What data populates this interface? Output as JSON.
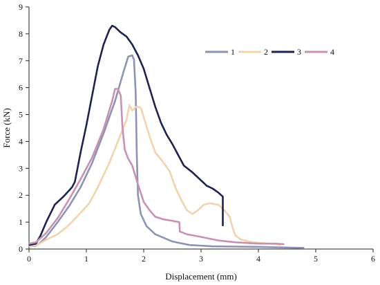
{
  "chart_data": {
    "type": "line",
    "title": "",
    "xlabel": "Displacement (mm)",
    "ylabel": "Force (kN)",
    "xlim": [
      0,
      6
    ],
    "ylim": [
      0,
      9
    ],
    "x_ticks": [
      0,
      1,
      2,
      3,
      4,
      5,
      6
    ],
    "y_ticks": [
      0,
      1,
      2,
      3,
      4,
      5,
      6,
      7,
      8,
      9
    ],
    "grid": false,
    "legend_position": "top-right",
    "series": [
      {
        "name": "1",
        "color": "#8e93b6",
        "points": [
          [
            0.0,
            0.1
          ],
          [
            0.12,
            0.12
          ],
          [
            0.18,
            0.2
          ],
          [
            0.3,
            0.45
          ],
          [
            0.5,
            1.0
          ],
          [
            0.7,
            1.6
          ],
          [
            0.9,
            2.3
          ],
          [
            1.1,
            3.2
          ],
          [
            1.3,
            4.3
          ],
          [
            1.5,
            5.5
          ],
          [
            1.65,
            6.6
          ],
          [
            1.73,
            7.15
          ],
          [
            1.8,
            7.2
          ],
          [
            1.83,
            7.05
          ],
          [
            1.86,
            5.8
          ],
          [
            1.88,
            3.5
          ],
          [
            1.9,
            2.0
          ],
          [
            1.95,
            1.3
          ],
          [
            2.05,
            0.85
          ],
          [
            2.2,
            0.55
          ],
          [
            2.5,
            0.28
          ],
          [
            2.8,
            0.15
          ],
          [
            3.2,
            0.1
          ],
          [
            4.0,
            0.08
          ],
          [
            4.4,
            0.06
          ],
          [
            4.8,
            0.04
          ]
        ]
      },
      {
        "name": "2",
        "color": "#f2d3ad",
        "points": [
          [
            0.0,
            0.1
          ],
          [
            0.15,
            0.15
          ],
          [
            0.3,
            0.35
          ],
          [
            0.5,
            0.55
          ],
          [
            0.7,
            0.9
          ],
          [
            0.9,
            1.35
          ],
          [
            1.05,
            1.7
          ],
          [
            1.2,
            2.3
          ],
          [
            1.4,
            3.2
          ],
          [
            1.55,
            4.0
          ],
          [
            1.7,
            4.8
          ],
          [
            1.75,
            5.35
          ],
          [
            1.8,
            5.15
          ],
          [
            1.88,
            5.3
          ],
          [
            1.95,
            5.25
          ],
          [
            2.0,
            4.9
          ],
          [
            2.1,
            4.2
          ],
          [
            2.2,
            3.6
          ],
          [
            2.35,
            3.2
          ],
          [
            2.45,
            2.9
          ],
          [
            2.55,
            2.3
          ],
          [
            2.65,
            1.85
          ],
          [
            2.75,
            1.45
          ],
          [
            2.85,
            1.3
          ],
          [
            2.95,
            1.45
          ],
          [
            3.05,
            1.65
          ],
          [
            3.15,
            1.7
          ],
          [
            3.3,
            1.65
          ],
          [
            3.4,
            1.45
          ],
          [
            3.5,
            1.2
          ],
          [
            3.55,
            0.8
          ],
          [
            3.6,
            0.5
          ],
          [
            3.7,
            0.35
          ],
          [
            3.9,
            0.25
          ],
          [
            4.2,
            0.2
          ],
          [
            4.4,
            0.15
          ]
        ]
      },
      {
        "name": "3",
        "color": "#1f2150",
        "points": [
          [
            0.0,
            0.15
          ],
          [
            0.12,
            0.2
          ],
          [
            0.2,
            0.5
          ],
          [
            0.3,
            1.0
          ],
          [
            0.45,
            1.65
          ],
          [
            0.6,
            1.95
          ],
          [
            0.75,
            2.3
          ],
          [
            0.8,
            2.5
          ],
          [
            0.9,
            3.6
          ],
          [
            1.0,
            4.6
          ],
          [
            1.1,
            5.7
          ],
          [
            1.2,
            6.8
          ],
          [
            1.3,
            7.6
          ],
          [
            1.4,
            8.15
          ],
          [
            1.45,
            8.3
          ],
          [
            1.5,
            8.25
          ],
          [
            1.6,
            8.05
          ],
          [
            1.7,
            7.9
          ],
          [
            1.8,
            7.6
          ],
          [
            1.9,
            7.2
          ],
          [
            2.0,
            6.7
          ],
          [
            2.1,
            6.0
          ],
          [
            2.2,
            5.3
          ],
          [
            2.3,
            4.7
          ],
          [
            2.4,
            4.25
          ],
          [
            2.5,
            3.9
          ],
          [
            2.6,
            3.5
          ],
          [
            2.7,
            3.1
          ],
          [
            2.85,
            2.85
          ],
          [
            3.0,
            2.55
          ],
          [
            3.1,
            2.35
          ],
          [
            3.2,
            2.25
          ],
          [
            3.3,
            2.1
          ],
          [
            3.38,
            1.95
          ],
          [
            3.38,
            0.85
          ]
        ]
      },
      {
        "name": "4",
        "color": "#c792b2",
        "points": [
          [
            0.0,
            0.2
          ],
          [
            0.12,
            0.25
          ],
          [
            0.3,
            0.6
          ],
          [
            0.5,
            1.15
          ],
          [
            0.7,
            1.85
          ],
          [
            0.9,
            2.6
          ],
          [
            1.1,
            3.4
          ],
          [
            1.3,
            4.45
          ],
          [
            1.45,
            5.5
          ],
          [
            1.5,
            5.95
          ],
          [
            1.55,
            5.95
          ],
          [
            1.6,
            5.7
          ],
          [
            1.63,
            4.5
          ],
          [
            1.67,
            3.7
          ],
          [
            1.72,
            3.4
          ],
          [
            1.8,
            3.1
          ],
          [
            1.9,
            2.4
          ],
          [
            2.0,
            1.75
          ],
          [
            2.1,
            1.45
          ],
          [
            2.2,
            1.2
          ],
          [
            2.35,
            1.1
          ],
          [
            2.5,
            1.05
          ],
          [
            2.62,
            1.0
          ],
          [
            2.63,
            0.65
          ],
          [
            2.75,
            0.55
          ],
          [
            3.0,
            0.45
          ],
          [
            3.3,
            0.32
          ],
          [
            3.6,
            0.25
          ],
          [
            4.0,
            0.2
          ],
          [
            4.3,
            0.2
          ],
          [
            4.45,
            0.18
          ]
        ]
      }
    ]
  }
}
